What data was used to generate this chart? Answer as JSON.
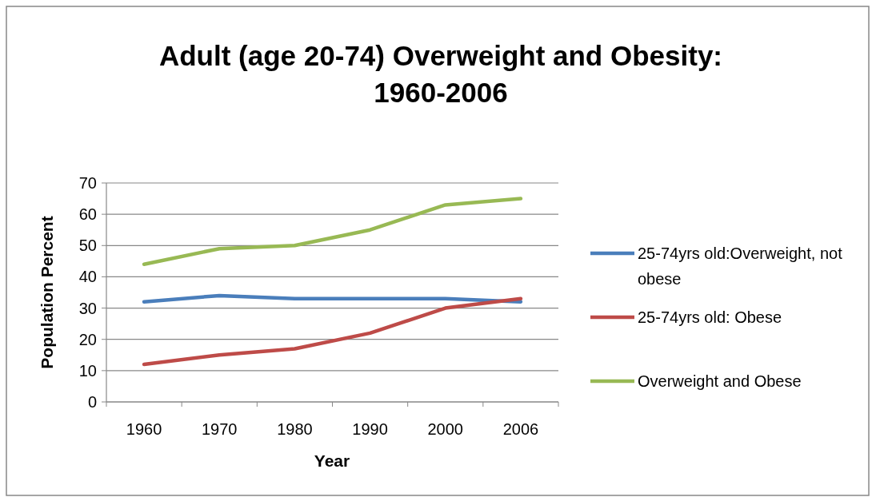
{
  "chart_data": {
    "type": "line",
    "title": "Adult (age 20-74) Overweight and Obesity: 1960-2006",
    "xlabel": "Year",
    "ylabel": "Population Percent",
    "categories": [
      "1960",
      "1970",
      "1980",
      "1990",
      "2000",
      "2006"
    ],
    "series": [
      {
        "name": "25-74yrs old:Overweight, not obese",
        "color": "#4a7ebb",
        "values": [
          32,
          34,
          33,
          33,
          33,
          32
        ]
      },
      {
        "name": "25-74yrs old: Obese",
        "color": "#be4b48",
        "values": [
          12,
          15,
          17,
          22,
          30,
          33
        ]
      },
      {
        "name": "Overweight and Obese",
        "color": "#98b954",
        "values": [
          44,
          49,
          50,
          55,
          63,
          65
        ]
      }
    ],
    "ylim": [
      0,
      70
    ],
    "yticks": [
      0,
      10,
      20,
      30,
      40,
      50,
      60,
      70
    ],
    "grid": "y",
    "legend": "right",
    "marker": "none",
    "line_style": "solid"
  }
}
